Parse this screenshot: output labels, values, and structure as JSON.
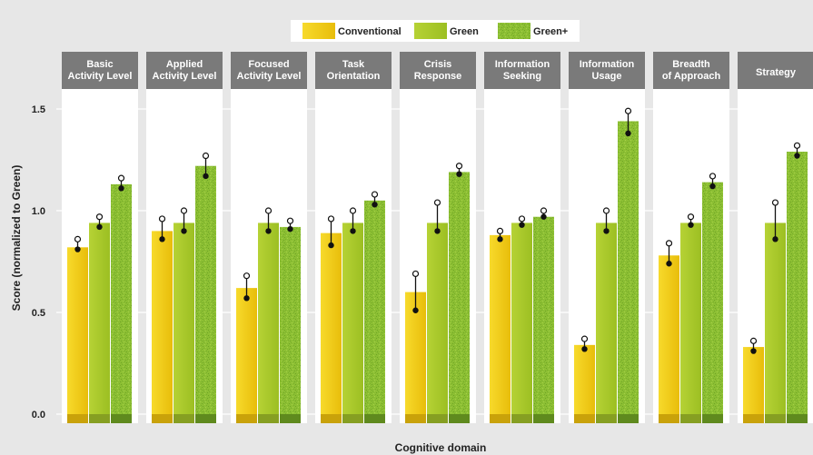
{
  "chart_data": {
    "type": "bar",
    "xlabel": "Cognitive domain",
    "ylabel": "Score (normalized to Green)",
    "ylim": [
      0,
      1.5
    ],
    "yticks": [
      "0.0",
      "0.5",
      "1.0",
      "1.5"
    ],
    "categories": [
      [
        "Basic",
        "Activity Level"
      ],
      [
        "Applied",
        "Activity Level"
      ],
      [
        "Focused",
        "Activity Level"
      ],
      [
        "Task",
        "Orientation"
      ],
      [
        "Crisis",
        "Response"
      ],
      [
        "Information",
        "Seeking"
      ],
      [
        "Information",
        "Usage"
      ],
      [
        "Breadth",
        "of Approach"
      ],
      [
        "Strategy"
      ]
    ],
    "series": [
      {
        "name": "Conventional",
        "color": "#f2cc12",
        "values": [
          0.82,
          0.9,
          0.62,
          0.89,
          0.6,
          0.88,
          0.34,
          0.78,
          0.33
        ],
        "means": [
          0.81,
          0.86,
          0.57,
          0.83,
          0.51,
          0.86,
          0.32,
          0.74,
          0.31
        ],
        "upper": [
          0.86,
          0.96,
          0.68,
          0.96,
          0.69,
          0.9,
          0.37,
          0.84,
          0.36
        ]
      },
      {
        "name": "Green",
        "color": "#a9c92a",
        "values": [
          0.94,
          0.94,
          0.94,
          0.94,
          0.94,
          0.94,
          0.94,
          0.94,
          0.94
        ],
        "means": [
          0.92,
          0.9,
          0.9,
          0.9,
          0.9,
          0.93,
          0.9,
          0.93,
          0.86
        ],
        "upper": [
          0.97,
          1.0,
          1.0,
          1.0,
          1.04,
          0.96,
          1.0,
          0.97,
          1.04
        ]
      },
      {
        "name": "Green+",
        "color": "#7fb32c",
        "values": [
          1.13,
          1.22,
          0.92,
          1.05,
          1.19,
          0.97,
          1.44,
          1.14,
          1.29
        ],
        "means": [
          1.11,
          1.17,
          0.91,
          1.03,
          1.18,
          0.97,
          1.38,
          1.12,
          1.27
        ],
        "upper": [
          1.16,
          1.27,
          0.95,
          1.08,
          1.22,
          1.0,
          1.49,
          1.17,
          1.32
        ]
      }
    ]
  }
}
